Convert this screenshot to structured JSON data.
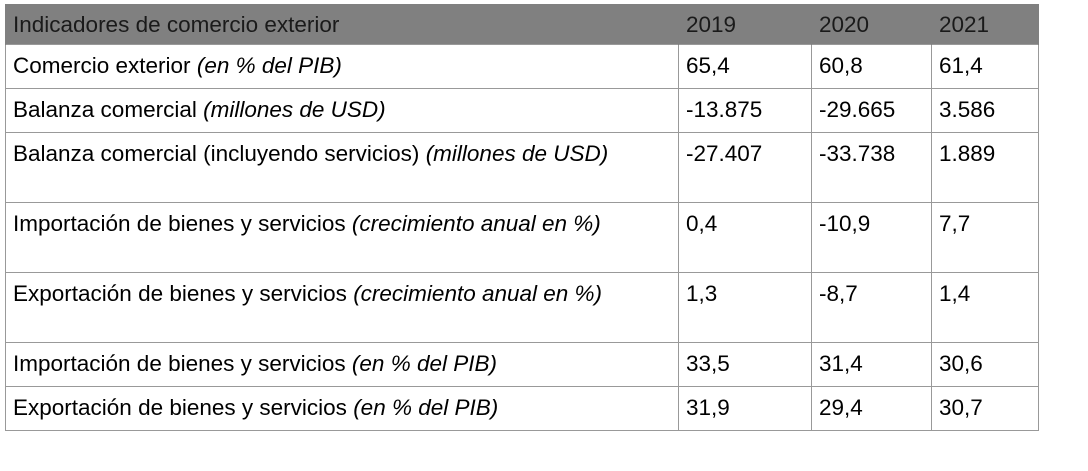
{
  "table": {
    "header": {
      "label": "Indicadores de comercio exterior",
      "years": [
        "2019",
        "2020",
        "2021"
      ]
    },
    "rows": [
      {
        "label": "Comercio exterior",
        "unit": "(en % del PIB)",
        "values": [
          "65,4",
          "60,8",
          "61,4"
        ]
      },
      {
        "label": "Balanza comercial",
        "unit": "(millones de USD)",
        "values": [
          "-13.875",
          "-29.665",
          "3.586"
        ]
      },
      {
        "label": "Balanza comercial (incluyendo servicios)",
        "unit": "(millones de USD)",
        "values": [
          "-27.407",
          "-33.738",
          "1.889"
        ]
      },
      {
        "label": "Importación de bienes y servicios",
        "unit": "(crecimiento anual en %)",
        "values": [
          "0,4",
          "-10,9",
          "7,7"
        ]
      },
      {
        "label": "Exportación de bienes y servicios",
        "unit": "(crecimiento anual en %)",
        "values": [
          "1,3",
          "-8,7",
          "1,4"
        ]
      },
      {
        "label": "Importación de bienes y servicios",
        "unit": "(en % del PIB)",
        "values": [
          "33,5",
          "31,4",
          "30,6"
        ]
      },
      {
        "label": "Exportación de bienes y servicios",
        "unit": "(en % del PIB)",
        "values": [
          "31,9",
          "29,4",
          "30,7"
        ]
      }
    ]
  }
}
